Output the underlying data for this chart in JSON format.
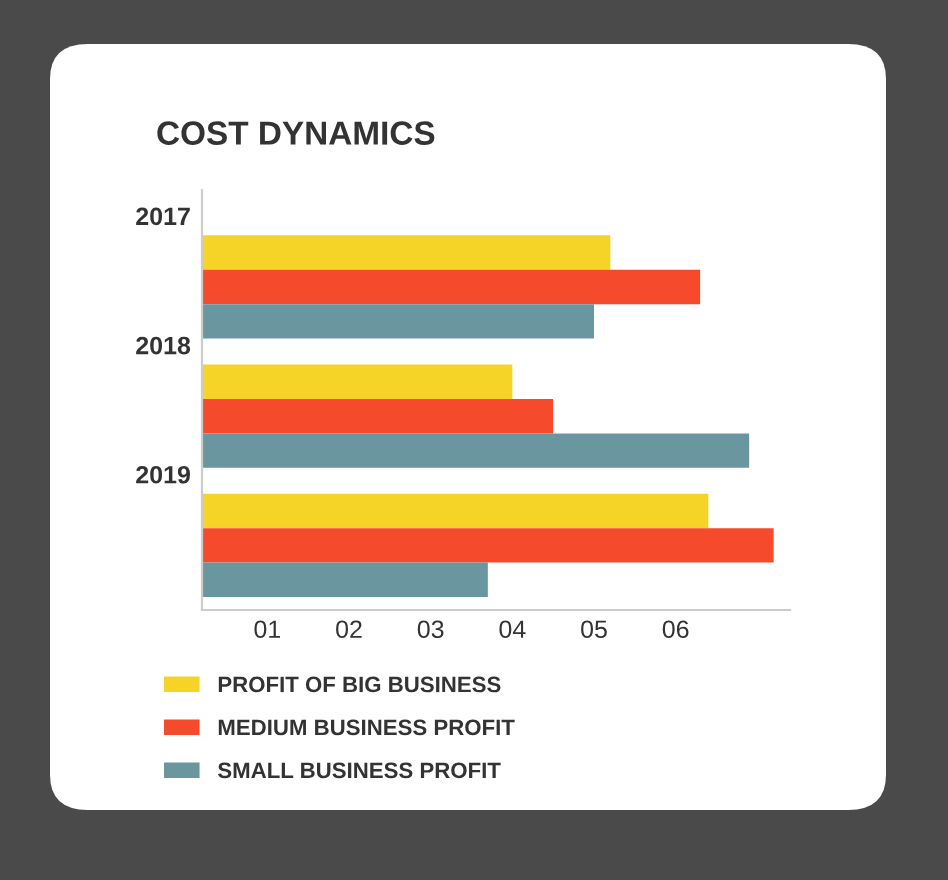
{
  "chart_data": {
    "type": "bar",
    "orientation": "horizontal",
    "title": "COST DYNAMICS",
    "categories": [
      "2017",
      "2018",
      "2019"
    ],
    "series": [
      {
        "name": "PROFIT OF BIG BUSINESS",
        "color": "#f5d327",
        "values": [
          5.2,
          4.0,
          6.4
        ]
      },
      {
        "name": "MEDIUM BUSINESS PROFIT",
        "color": "#f64a2c",
        "values": [
          6.3,
          4.5,
          7.2
        ]
      },
      {
        "name": "SMALL BUSINESS PROFIT",
        "color": "#6a96a0",
        "values": [
          5.0,
          6.9,
          3.7
        ]
      }
    ],
    "xlim": [
      0.2,
      7.4
    ],
    "xticks": [
      {
        "value": 1,
        "label": "01"
      },
      {
        "value": 2,
        "label": "02"
      },
      {
        "value": 3,
        "label": "03"
      },
      {
        "value": 4,
        "label": "04"
      },
      {
        "value": 5,
        "label": "05"
      },
      {
        "value": 6,
        "label": "06"
      }
    ],
    "grid": false,
    "legend": "bottom"
  }
}
